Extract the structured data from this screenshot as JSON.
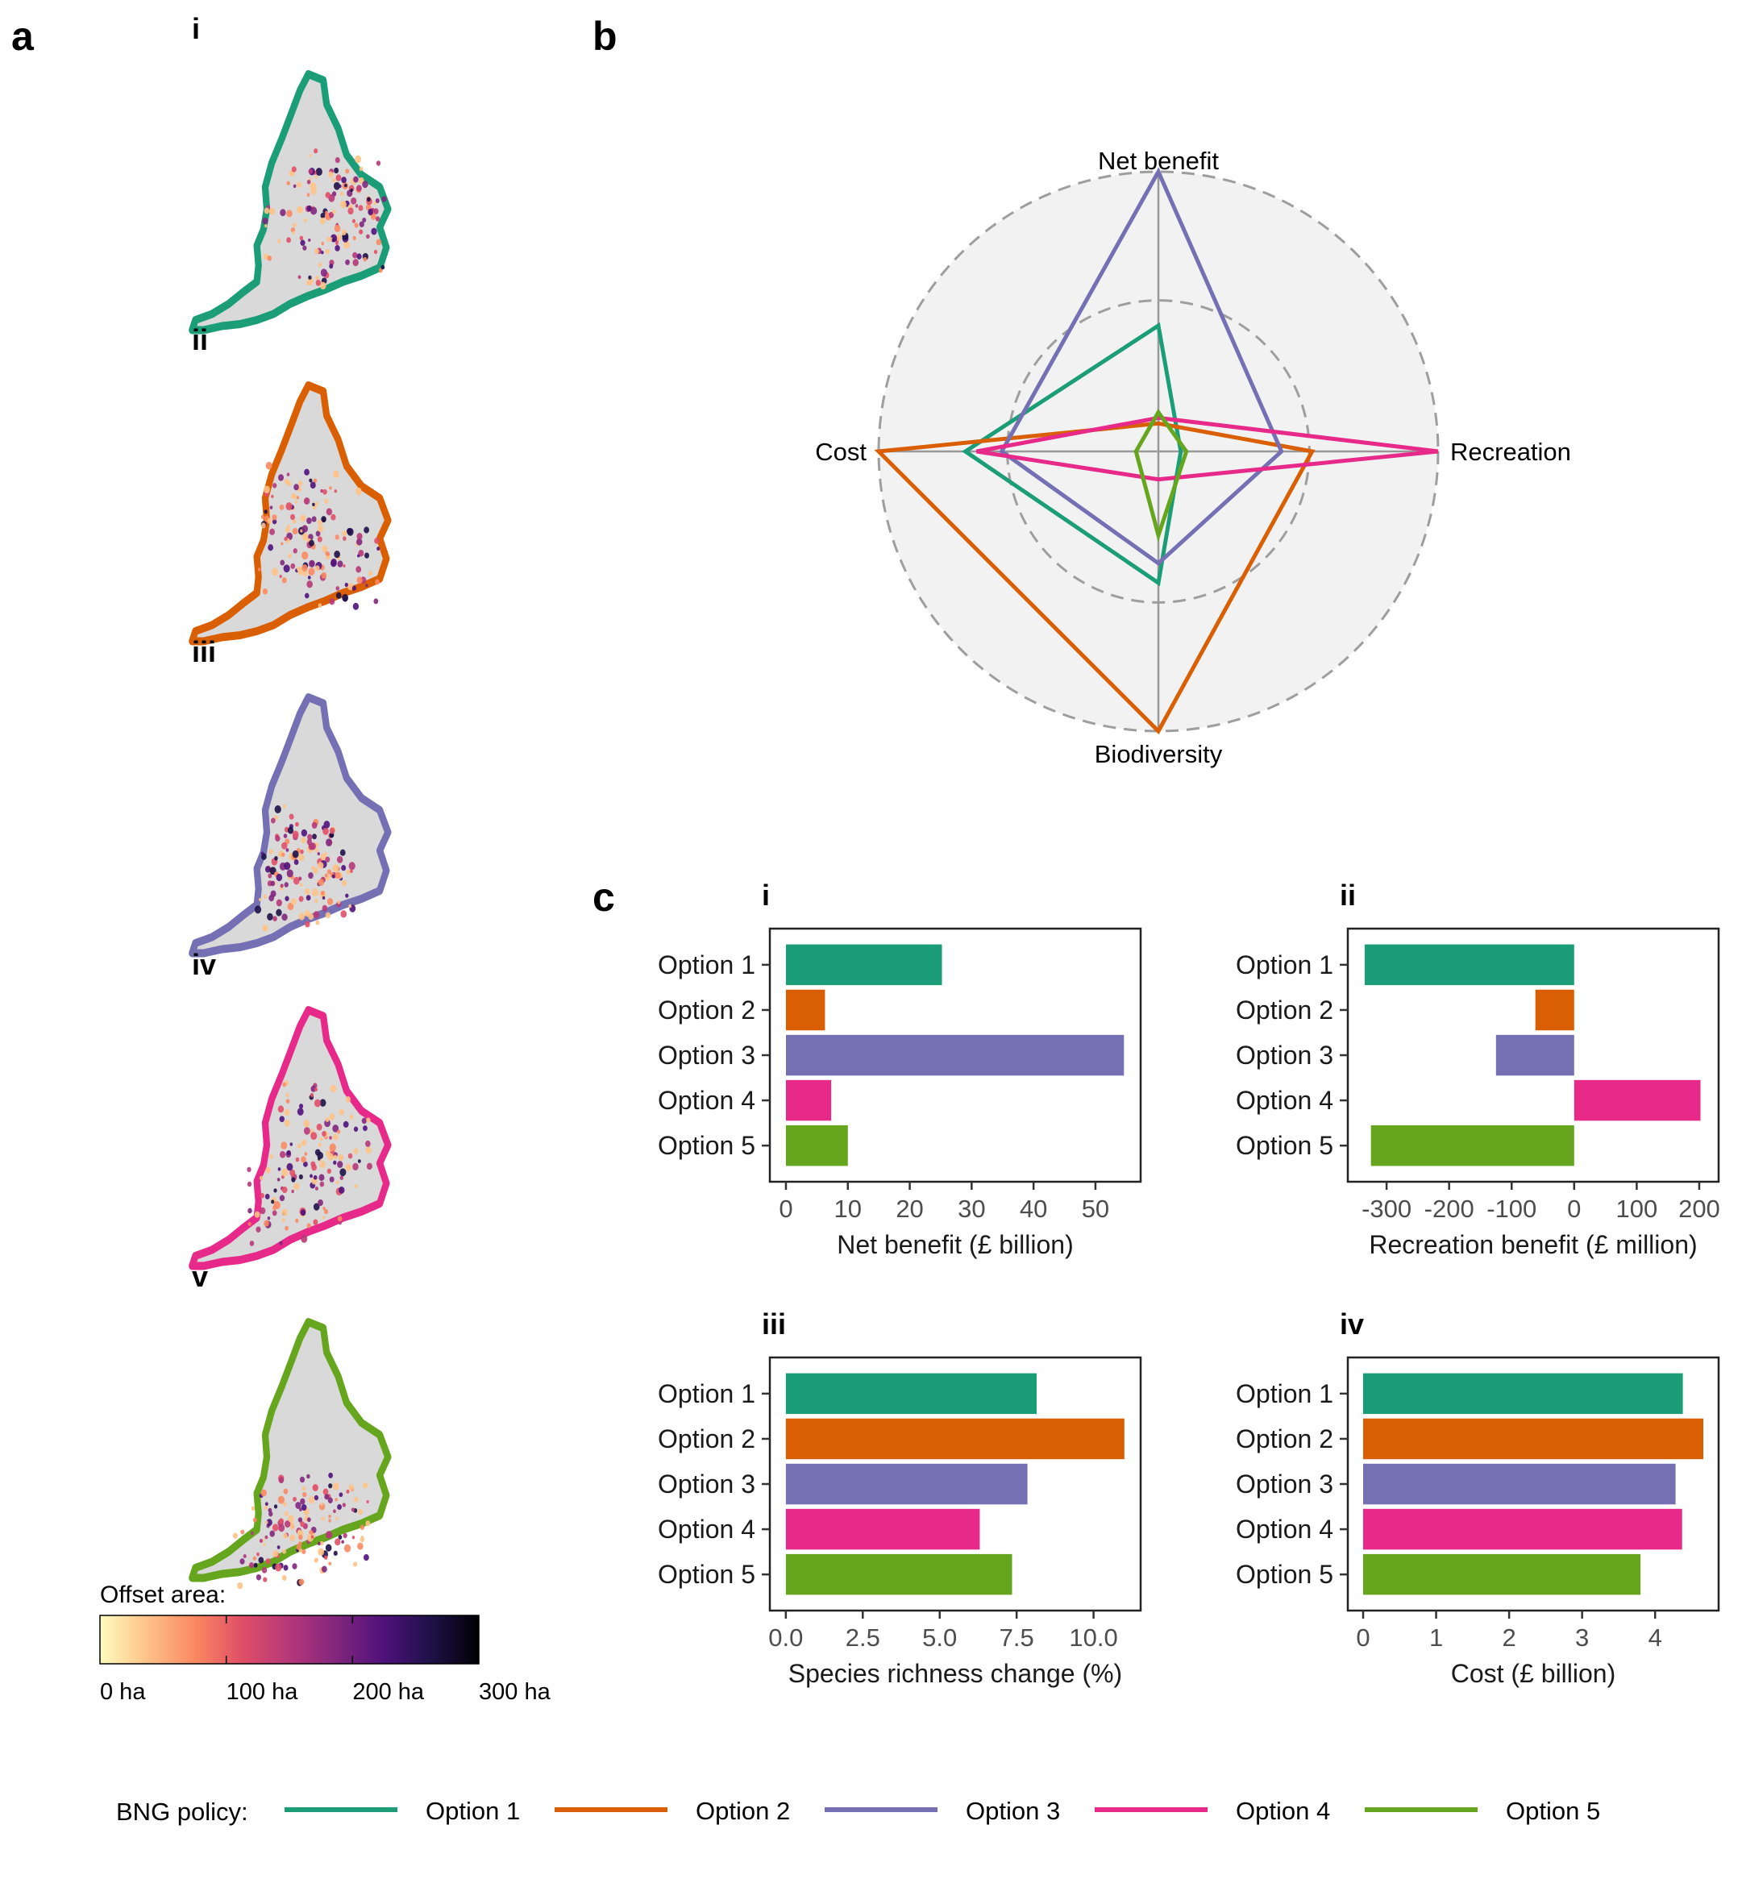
{
  "panel_labels": {
    "a": "a",
    "b": "b",
    "c": "c"
  },
  "colors": {
    "option1": "#1b9e77",
    "option2": "#d95f02",
    "option3": "#7570b3",
    "option4": "#e7298a",
    "option5": "#66a61e",
    "land": "#d9d9d9",
    "radar_bg": "#f2f2f2"
  },
  "maps": {
    "sublabels": [
      "i",
      "ii",
      "iii",
      "iv",
      "v"
    ],
    "colorbar": {
      "title": "Offset area:",
      "ticks": [
        "0 ha",
        "100 ha",
        "200 ha",
        "300 ha"
      ],
      "palette": [
        "#fffcbf",
        "#fec287",
        "#fb8861",
        "#e04f67",
        "#b63779",
        "#81267d",
        "#4f117b",
        "#1d1147",
        "#000004"
      ]
    }
  },
  "chart_data": [
    {
      "type": "radar",
      "axes": [
        "Net benefit",
        "Recreation",
        "Biodiversity",
        "Cost"
      ],
      "range": [
        0,
        1
      ],
      "note_scale": "normalized 0-1 per axis (read from figure)",
      "series": [
        {
          "name": "Option 1",
          "values": [
            0.45,
            0.08,
            0.47,
            0.69
          ]
        },
        {
          "name": "Option 2",
          "values": [
            0.1,
            0.55,
            1.0,
            1.0
          ]
        },
        {
          "name": "Option 3",
          "values": [
            1.0,
            0.44,
            0.4,
            0.56
          ]
        },
        {
          "name": "Option 4",
          "values": [
            0.12,
            1.0,
            0.1,
            0.65
          ]
        },
        {
          "name": "Option 5",
          "values": [
            0.14,
            0.1,
            0.3,
            0.08
          ]
        }
      ]
    },
    {
      "type": "bar",
      "sublabel": "i",
      "orientation": "horizontal",
      "categories": [
        "Option 1",
        "Option 2",
        "Option 3",
        "Option 4",
        "Option 5"
      ],
      "values": [
        25.2,
        6.3,
        54.6,
        7.3,
        10.0
      ],
      "xlabel": "Net benefit (£ billion)",
      "xlim": [
        -2.6,
        57.3
      ],
      "xticks": [
        0,
        10,
        20,
        30,
        40,
        50
      ],
      "xtick_labels": [
        "0",
        "10",
        "20",
        "30",
        "40",
        "50"
      ]
    },
    {
      "type": "bar",
      "sublabel": "ii",
      "orientation": "horizontal",
      "categories": [
        "Option 1",
        "Option 2",
        "Option 3",
        "Option 4",
        "Option 5"
      ],
      "values": [
        -335,
        -62,
        -125,
        202,
        -325
      ],
      "xlabel": "Recreation benefit (£ million)",
      "xlim": [
        -362,
        231
      ],
      "xticks": [
        -300,
        -200,
        -100,
        0,
        100,
        200
      ],
      "xtick_labels": [
        "-300",
        "-200",
        "-100",
        "0",
        "100",
        "200"
      ]
    },
    {
      "type": "bar",
      "sublabel": "iii",
      "orientation": "horizontal",
      "categories": [
        "Option 1",
        "Option 2",
        "Option 3",
        "Option 4",
        "Option 5"
      ],
      "values": [
        8.15,
        11.0,
        7.85,
        6.3,
        7.35
      ],
      "xlabel": "Species richness change (%)",
      "xlim": [
        -0.52,
        11.53
      ],
      "xticks": [
        0,
        2.5,
        5,
        7.5,
        10
      ],
      "xtick_labels": [
        "0.0",
        "2.5",
        "5.0",
        "7.5",
        "10.0"
      ]
    },
    {
      "type": "bar",
      "sublabel": "iv",
      "orientation": "horizontal",
      "categories": [
        "Option 1",
        "Option 2",
        "Option 3",
        "Option 4",
        "Option 5"
      ],
      "values": [
        4.38,
        4.66,
        4.28,
        4.37,
        3.8
      ],
      "xlabel": "Cost (£ billion)",
      "xlim": [
        -0.21,
        4.87
      ],
      "xticks": [
        0,
        1,
        2,
        3,
        4
      ],
      "xtick_labels": [
        "0",
        "1",
        "2",
        "3",
        "4"
      ]
    }
  ],
  "legend": {
    "title": "BNG policy:",
    "items": [
      "Option 1",
      "Option 2",
      "Option 3",
      "Option 4",
      "Option 5"
    ]
  }
}
